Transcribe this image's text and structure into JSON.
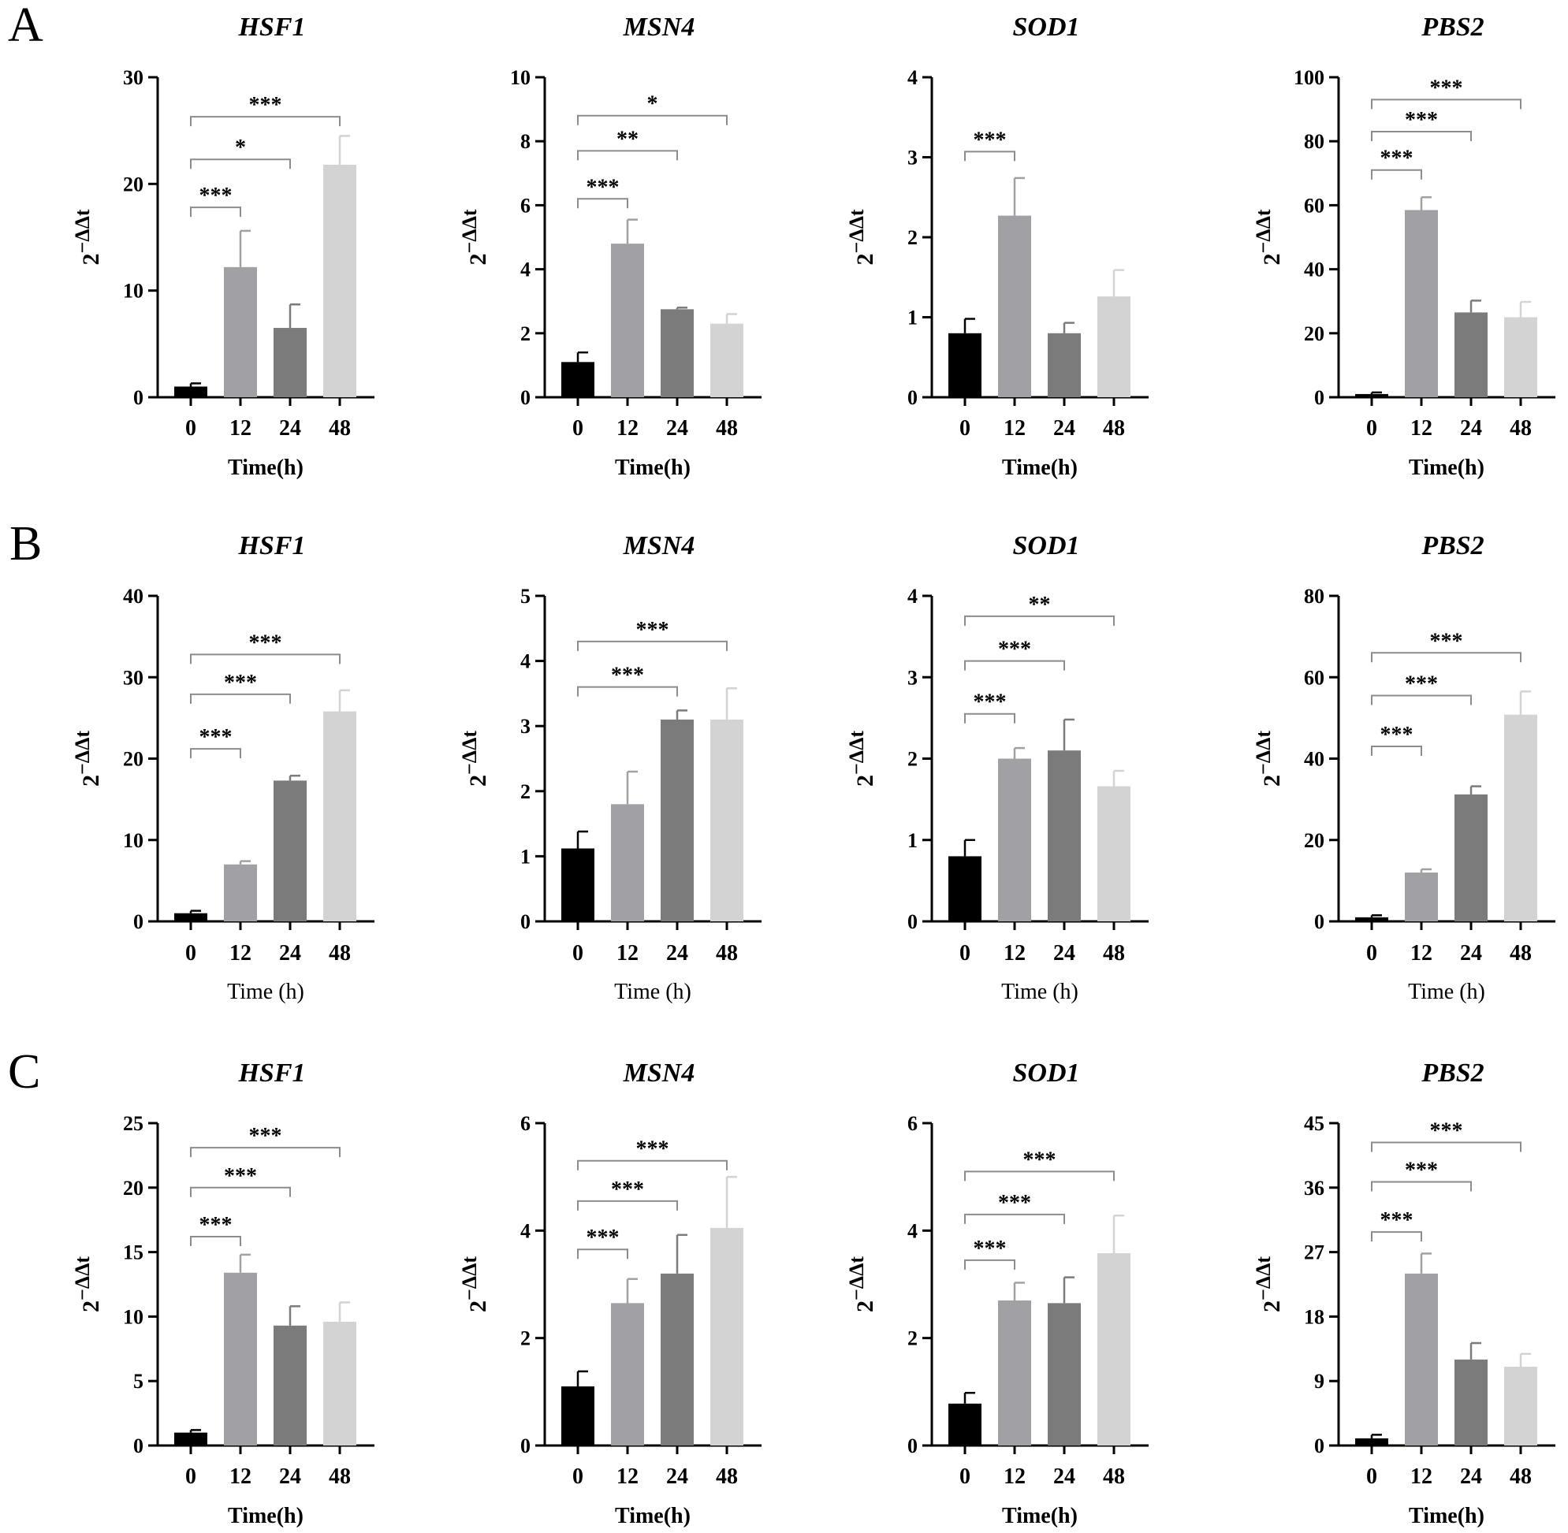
{
  "panels": [
    {
      "letter": "A",
      "charts": [
        {
          "type": "bar",
          "title": "HSF1",
          "xlabel": "Time(h)",
          "xlabel_bold": true,
          "ylabel": "2",
          "ylabel_sup": "−ΔΔt",
          "categories": [
            "0",
            "12",
            "24",
            "48"
          ],
          "values": [
            1.0,
            12.2,
            6.5,
            21.8
          ],
          "errors": [
            0.3,
            3.4,
            2.2,
            2.7
          ],
          "ylim": [
            0,
            30
          ],
          "yticks": [
            "0",
            "10",
            "20",
            "30"
          ],
          "significance": [
            {
              "label": "***",
              "from": 0,
              "to": 1,
              "y": 17.8
            },
            {
              "label": "*",
              "from": 0,
              "to": 2,
              "y": 22.3
            },
            {
              "label": "***",
              "from": 0,
              "to": 3,
              "y": 26.3
            }
          ]
        },
        {
          "type": "bar",
          "title": "MSN4",
          "xlabel": "Time(h)",
          "xlabel_bold": true,
          "ylabel": "2",
          "ylabel_sup": "−ΔΔt",
          "categories": [
            "0",
            "12",
            "24",
            "48"
          ],
          "values": [
            1.1,
            4.8,
            2.75,
            2.3
          ],
          "errors": [
            0.3,
            0.75,
            0.05,
            0.3
          ],
          "ylim": [
            0,
            10
          ],
          "yticks": [
            "0",
            "2",
            "4",
            "6",
            "8",
            "10"
          ],
          "significance": [
            {
              "label": "***",
              "from": 0,
              "to": 1,
              "y": 6.2
            },
            {
              "label": "**",
              "from": 0,
              "to": 2,
              "y": 7.7
            },
            {
              "label": "*",
              "from": 0,
              "to": 3,
              "y": 8.8
            }
          ]
        },
        {
          "type": "bar",
          "title": "SOD1",
          "xlabel": "Time(h)",
          "xlabel_bold": true,
          "ylabel": "2",
          "ylabel_sup": "−ΔΔt",
          "categories": [
            "0",
            "12",
            "24",
            "48"
          ],
          "values": [
            0.8,
            2.27,
            0.8,
            1.26
          ],
          "errors": [
            0.18,
            0.47,
            0.13,
            0.33
          ],
          "ylim": [
            0,
            4
          ],
          "yticks": [
            "0",
            "1",
            "2",
            "3",
            "4"
          ],
          "significance": [
            {
              "label": "***",
              "from": 0,
              "to": 1,
              "y": 3.07
            }
          ]
        },
        {
          "type": "bar",
          "title": "PBS2",
          "xlabel": "Time(h)",
          "xlabel_bold": true,
          "ylabel": "2",
          "ylabel_sup": "−ΔΔt",
          "categories": [
            "0",
            "12",
            "24",
            "48"
          ],
          "values": [
            1.0,
            58.5,
            26.5,
            25.0
          ],
          "errors": [
            0.5,
            4.0,
            3.7,
            4.8
          ],
          "ylim": [
            0,
            100
          ],
          "yticks": [
            "0",
            "20",
            "40",
            "60",
            "80",
            "100"
          ],
          "significance": [
            {
              "label": "***",
              "from": 0,
              "to": 1,
              "y": 71.0
            },
            {
              "label": "***",
              "from": 0,
              "to": 2,
              "y": 83.0
            },
            {
              "label": "***",
              "from": 0,
              "to": 3,
              "y": 93.0
            }
          ]
        }
      ]
    },
    {
      "letter": "B",
      "charts": [
        {
          "type": "bar",
          "title": "HSF1",
          "xlabel": "Time (h)",
          "xlabel_bold": false,
          "ylabel": "2",
          "ylabel_sup": "−ΔΔt",
          "categories": [
            "0",
            "12",
            "24",
            "48"
          ],
          "values": [
            1.0,
            7.0,
            17.3,
            25.8
          ],
          "errors": [
            0.3,
            0.4,
            0.6,
            2.6
          ],
          "ylim": [
            0,
            40
          ],
          "yticks": [
            "0",
            "10",
            "20",
            "30",
            "40"
          ],
          "significance": [
            {
              "label": "***",
              "from": 0,
              "to": 1,
              "y": 21.2
            },
            {
              "label": "***",
              "from": 0,
              "to": 2,
              "y": 27.9
            },
            {
              "label": "***",
              "from": 0,
              "to": 3,
              "y": 32.8
            }
          ]
        },
        {
          "type": "bar",
          "title": "MSN4",
          "xlabel": "Time (h)",
          "xlabel_bold": false,
          "ylabel": "2",
          "ylabel_sup": "−ΔΔt",
          "categories": [
            "0",
            "12",
            "24",
            "48"
          ],
          "values": [
            1.12,
            1.8,
            3.1,
            3.1
          ],
          "errors": [
            0.26,
            0.5,
            0.14,
            0.48
          ],
          "ylim": [
            0,
            5
          ],
          "yticks": [
            "0",
            "1",
            "2",
            "3",
            "4",
            "5"
          ],
          "significance": [
            {
              "label": "***",
              "from": 0,
              "to": 2,
              "y": 3.6
            },
            {
              "label": "***",
              "from": 0,
              "to": 3,
              "y": 4.3
            }
          ]
        },
        {
          "type": "bar",
          "title": "SOD1",
          "xlabel": "Time (h)",
          "xlabel_bold": false,
          "ylabel": "2",
          "ylabel_sup": "−ΔΔt",
          "categories": [
            "0",
            "12",
            "24",
            "48"
          ],
          "values": [
            0.8,
            2.0,
            2.1,
            1.66
          ],
          "errors": [
            0.2,
            0.13,
            0.38,
            0.19
          ],
          "ylim": [
            0,
            4
          ],
          "yticks": [
            "0",
            "1",
            "2",
            "3",
            "4"
          ],
          "significance": [
            {
              "label": "***",
              "from": 0,
              "to": 1,
              "y": 2.55
            },
            {
              "label": "***",
              "from": 0,
              "to": 2,
              "y": 3.2
            },
            {
              "label": "**",
              "from": 0,
              "to": 3,
              "y": 3.75
            }
          ]
        },
        {
          "type": "bar",
          "title": "PBS2",
          "xlabel": "Time (h)",
          "xlabel_bold": false,
          "ylabel": "2",
          "ylabel_sup": "−ΔΔt",
          "categories": [
            "0",
            "12",
            "24",
            "48"
          ],
          "values": [
            1.0,
            12.0,
            31.2,
            50.8
          ],
          "errors": [
            0.5,
            0.8,
            2.0,
            5.7
          ],
          "ylim": [
            0,
            80
          ],
          "yticks": [
            "0",
            "20",
            "40",
            "60",
            "80"
          ],
          "significance": [
            {
              "label": "***",
              "from": 0,
              "to": 1,
              "y": 43.0
            },
            {
              "label": "***",
              "from": 0,
              "to": 2,
              "y": 55.5
            },
            {
              "label": "***",
              "from": 0,
              "to": 3,
              "y": 66.0
            }
          ]
        }
      ]
    },
    {
      "letter": "C",
      "charts": [
        {
          "type": "bar",
          "title": "HSF1",
          "xlabel": "Time(h)",
          "xlabel_bold": true,
          "ylabel": "2",
          "ylabel_sup": "−ΔΔt",
          "categories": [
            "0",
            "12",
            "24",
            "48"
          ],
          "values": [
            1.0,
            13.4,
            9.3,
            9.6
          ],
          "errors": [
            0.2,
            1.4,
            1.5,
            1.5
          ],
          "ylim": [
            0,
            25
          ],
          "yticks": [
            "0",
            "5",
            "10",
            "15",
            "20",
            "25"
          ],
          "significance": [
            {
              "label": "***",
              "from": 0,
              "to": 1,
              "y": 16.2
            },
            {
              "label": "***",
              "from": 0,
              "to": 2,
              "y": 20.0
            },
            {
              "label": "***",
              "from": 0,
              "to": 3,
              "y": 23.1
            }
          ]
        },
        {
          "type": "bar",
          "title": "MSN4",
          "xlabel": "Time(h)",
          "xlabel_bold": true,
          "ylabel": "2",
          "ylabel_sup": "−ΔΔt",
          "categories": [
            "0",
            "12",
            "24",
            "48"
          ],
          "values": [
            1.1,
            2.65,
            3.2,
            4.05
          ],
          "errors": [
            0.28,
            0.45,
            0.72,
            0.95
          ],
          "ylim": [
            0,
            6
          ],
          "yticks": [
            "0",
            "2",
            "4",
            "6"
          ],
          "significance": [
            {
              "label": "***",
              "from": 0,
              "to": 1,
              "y": 3.65
            },
            {
              "label": "***",
              "from": 0,
              "to": 2,
              "y": 4.55
            },
            {
              "label": "***",
              "from": 0,
              "to": 3,
              "y": 5.3
            }
          ]
        },
        {
          "type": "bar",
          "title": "SOD1",
          "xlabel": "Time(h)",
          "xlabel_bold": true,
          "ylabel": "2",
          "ylabel_sup": "−ΔΔt",
          "categories": [
            "0",
            "12",
            "24",
            "48"
          ],
          "values": [
            0.78,
            2.7,
            2.65,
            3.58
          ],
          "errors": [
            0.2,
            0.33,
            0.48,
            0.7
          ],
          "ylim": [
            0,
            6
          ],
          "yticks": [
            "0",
            "2",
            "4",
            "6"
          ],
          "significance": [
            {
              "label": "***",
              "from": 0,
              "to": 1,
              "y": 3.45
            },
            {
              "label": "***",
              "from": 0,
              "to": 2,
              "y": 4.3
            },
            {
              "label": "***",
              "from": 0,
              "to": 3,
              "y": 5.1
            }
          ]
        },
        {
          "type": "bar",
          "title": "PBS2",
          "xlabel": "Time(h)",
          "xlabel_bold": true,
          "ylabel": "2",
          "ylabel_sup": "−ΔΔt",
          "categories": [
            "0",
            "12",
            "24",
            "48"
          ],
          "values": [
            1.0,
            24.0,
            12.0,
            11.0
          ],
          "errors": [
            0.5,
            2.8,
            2.3,
            1.8
          ],
          "ylim": [
            0,
            45
          ],
          "yticks": [
            "0",
            "9",
            "18",
            "27",
            "36",
            "45"
          ],
          "significance": [
            {
              "label": "***",
              "from": 0,
              "to": 1,
              "y": 29.8
            },
            {
              "label": "***",
              "from": 0,
              "to": 2,
              "y": 36.8
            },
            {
              "label": "***",
              "from": 0,
              "to": 3,
              "y": 42.3
            }
          ]
        }
      ]
    }
  ],
  "colors": {
    "bars": [
      "#000000",
      "#a1a1a5",
      "#7b7b7b",
      "#d3d3d3"
    ],
    "axis": "#000000",
    "bracket": "#8c8c8c"
  }
}
